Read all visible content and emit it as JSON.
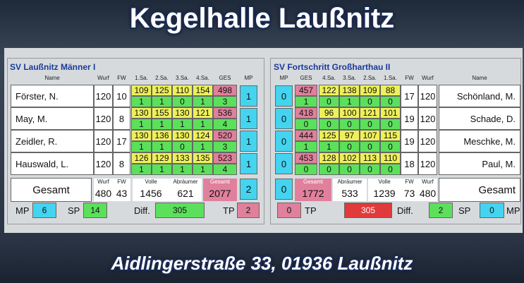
{
  "title": "Kegelhalle Laußnitz",
  "address": "Aidlingerstraße 33, 01936 Laußnitz",
  "home": {
    "team": "SV Laußnitz Männer I",
    "headers": [
      "Name",
      "Wurf",
      "FW",
      "1.Sa.",
      "2.Sa.",
      "3.Sa.",
      "4.Sa.",
      "GES",
      "MP"
    ],
    "players": [
      {
        "name": "Förster, N.",
        "wurf": 120,
        "fw": 10,
        "sets": [
          109,
          125,
          110,
          154
        ],
        "set_points": [
          1,
          1,
          0,
          1
        ],
        "ges": 498,
        "sp": 3,
        "mp": 1
      },
      {
        "name": "May, M.",
        "wurf": 120,
        "fw": 8,
        "sets": [
          130,
          155,
          130,
          121
        ],
        "set_points": [
          1,
          1,
          1,
          1
        ],
        "ges": 536,
        "sp": 4,
        "mp": 1
      },
      {
        "name": "Zeidler, R.",
        "wurf": 120,
        "fw": 17,
        "sets": [
          130,
          136,
          130,
          124
        ],
        "set_points": [
          1,
          1,
          0,
          1
        ],
        "ges": 520,
        "sp": 3,
        "mp": 1
      },
      {
        "name": "Hauswald, L.",
        "wurf": 120,
        "fw": 8,
        "sets": [
          126,
          129,
          133,
          135
        ],
        "set_points": [
          1,
          1,
          1,
          1
        ],
        "ges": 523,
        "sp": 4,
        "mp": 1
      }
    ],
    "total": {
      "label": "Gesamt",
      "headers": [
        "Wurf",
        "FW",
        "Volle",
        "Abräumer",
        "Gesamt"
      ],
      "values": [
        480,
        43,
        1456,
        621,
        2077
      ],
      "mp": 2
    },
    "summary": [
      {
        "label": "MP",
        "value": 6
      },
      {
        "label": "SP",
        "value": 14
      },
      {
        "label": "Diff.",
        "value": 305
      },
      {
        "label": "TP",
        "value": 2
      }
    ]
  },
  "guest": {
    "team": "SV Fortschritt Großharthau II",
    "headers": [
      "MP",
      "GES",
      "4.Sa.",
      "3.Sa.",
      "2.Sa.",
      "1.Sa.",
      "FW",
      "Wurf",
      "Name"
    ],
    "players": [
      {
        "name": "Schönland, M.",
        "wurf": 120,
        "fw": 17,
        "sets": [
          122,
          138,
          109,
          88
        ],
        "set_points": [
          0,
          1,
          0,
          0
        ],
        "ges": 457,
        "sp": 1,
        "mp": 0
      },
      {
        "name": "Schade, D.",
        "wurf": 120,
        "fw": 19,
        "sets": [
          96,
          100,
          121,
          101
        ],
        "set_points": [
          0,
          0,
          0,
          0
        ],
        "ges": 418,
        "sp": 0,
        "mp": 0
      },
      {
        "name": "Meschke, M.",
        "wurf": 120,
        "fw": 19,
        "sets": [
          125,
          97,
          107,
          115
        ],
        "set_points": [
          1,
          0,
          0,
          0
        ],
        "ges": 444,
        "sp": 1,
        "mp": 0
      },
      {
        "name": "Paul, M.",
        "wurf": 120,
        "fw": 18,
        "sets": [
          128,
          102,
          113,
          110
        ],
        "set_points": [
          0,
          0,
          0,
          0
        ],
        "ges": 453,
        "sp": 0,
        "mp": 0
      }
    ],
    "total": {
      "label": "Gesamt",
      "headers": [
        "Gesamt",
        "Abräumer",
        "Volle",
        "FW",
        "Wurf"
      ],
      "values": [
        1772,
        533,
        1239,
        73,
        480
      ],
      "mp": 0
    },
    "summary": [
      {
        "label": "TP",
        "value": 0
      },
      {
        "label": "Diff.",
        "value": 305
      },
      {
        "label": "SP",
        "value": 2
      },
      {
        "label": "MP",
        "value": 0
      }
    ]
  }
}
